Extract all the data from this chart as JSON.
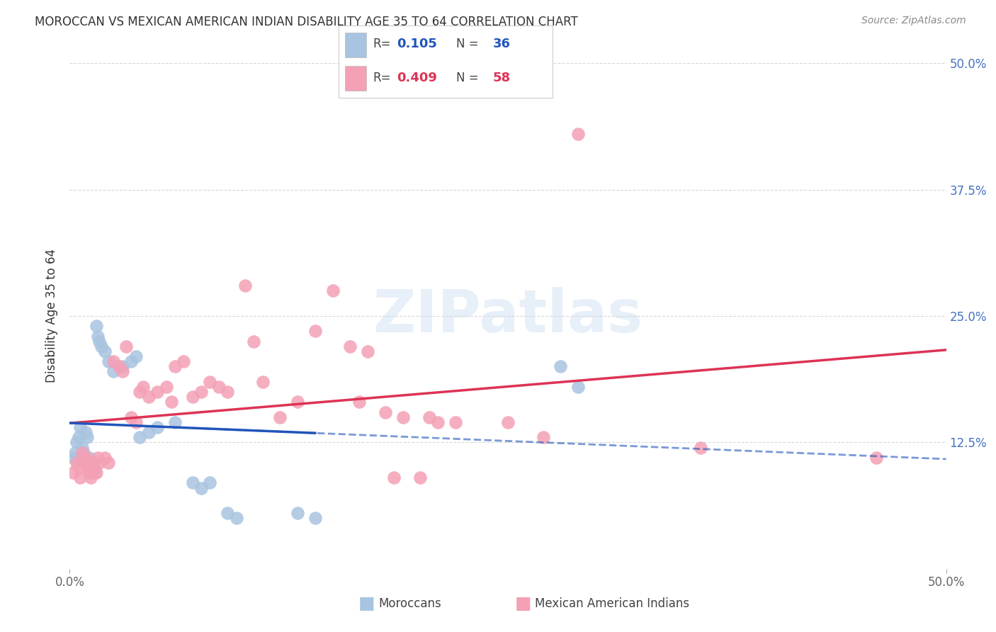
{
  "title": "MOROCCAN VS MEXICAN AMERICAN INDIAN DISABILITY AGE 35 TO 64 CORRELATION CHART",
  "source": "Source: ZipAtlas.com",
  "ylabel": "Disability Age 35 to 64",
  "legend1_r": "0.105",
  "legend1_n": "36",
  "legend2_r": "0.409",
  "legend2_n": "58",
  "watermark": "ZIPatlas",
  "blue_scatter_color": "#a8c4e0",
  "pink_scatter_color": "#f4a0b5",
  "blue_line_color": "#2255bb",
  "pink_line_color": "#dd3355",
  "blue_scatter": [
    [
      0.2,
      11.0
    ],
    [
      0.3,
      11.5
    ],
    [
      0.4,
      12.5
    ],
    [
      0.5,
      13.0
    ],
    [
      0.6,
      14.0
    ],
    [
      0.7,
      12.0
    ],
    [
      0.8,
      11.5
    ],
    [
      0.9,
      13.5
    ],
    [
      1.0,
      13.0
    ],
    [
      1.1,
      11.0
    ],
    [
      1.2,
      10.0
    ],
    [
      1.3,
      10.5
    ],
    [
      1.4,
      9.5
    ],
    [
      1.5,
      24.0
    ],
    [
      1.6,
      23.0
    ],
    [
      1.7,
      22.5
    ],
    [
      1.8,
      22.0
    ],
    [
      2.0,
      21.5
    ],
    [
      2.2,
      20.5
    ],
    [
      2.5,
      19.5
    ],
    [
      3.0,
      20.0
    ],
    [
      3.5,
      20.5
    ],
    [
      3.8,
      21.0
    ],
    [
      4.0,
      13.0
    ],
    [
      4.5,
      13.5
    ],
    [
      5.0,
      14.0
    ],
    [
      6.0,
      14.5
    ],
    [
      7.0,
      8.5
    ],
    [
      7.5,
      8.0
    ],
    [
      8.0,
      8.5
    ],
    [
      9.0,
      5.5
    ],
    [
      9.5,
      5.0
    ],
    [
      13.0,
      5.5
    ],
    [
      14.0,
      5.0
    ],
    [
      28.0,
      20.0
    ],
    [
      29.0,
      18.0
    ]
  ],
  "pink_scatter": [
    [
      0.2,
      9.5
    ],
    [
      0.4,
      10.5
    ],
    [
      0.5,
      10.0
    ],
    [
      0.6,
      9.0
    ],
    [
      0.7,
      11.5
    ],
    [
      0.8,
      10.5
    ],
    [
      0.9,
      11.0
    ],
    [
      1.0,
      10.0
    ],
    [
      1.1,
      9.5
    ],
    [
      1.2,
      9.0
    ],
    [
      1.3,
      10.5
    ],
    [
      1.4,
      10.0
    ],
    [
      1.5,
      9.5
    ],
    [
      1.6,
      11.0
    ],
    [
      1.7,
      10.5
    ],
    [
      2.0,
      11.0
    ],
    [
      2.2,
      10.5
    ],
    [
      2.5,
      20.5
    ],
    [
      2.8,
      20.0
    ],
    [
      3.0,
      19.5
    ],
    [
      3.2,
      22.0
    ],
    [
      3.5,
      15.0
    ],
    [
      3.8,
      14.5
    ],
    [
      4.0,
      17.5
    ],
    [
      4.2,
      18.0
    ],
    [
      4.5,
      17.0
    ],
    [
      5.0,
      17.5
    ],
    [
      5.5,
      18.0
    ],
    [
      5.8,
      16.5
    ],
    [
      6.0,
      20.0
    ],
    [
      6.5,
      20.5
    ],
    [
      7.0,
      17.0
    ],
    [
      7.5,
      17.5
    ],
    [
      8.0,
      18.5
    ],
    [
      8.5,
      18.0
    ],
    [
      9.0,
      17.5
    ],
    [
      10.0,
      28.0
    ],
    [
      10.5,
      22.5
    ],
    [
      11.0,
      18.5
    ],
    [
      12.0,
      15.0
    ],
    [
      13.0,
      16.5
    ],
    [
      14.0,
      23.5
    ],
    [
      15.0,
      27.5
    ],
    [
      16.0,
      22.0
    ],
    [
      16.5,
      16.5
    ],
    [
      17.0,
      21.5
    ],
    [
      18.0,
      15.5
    ],
    [
      18.5,
      9.0
    ],
    [
      19.0,
      15.0
    ],
    [
      20.0,
      9.0
    ],
    [
      20.5,
      15.0
    ],
    [
      21.0,
      14.5
    ],
    [
      22.0,
      14.5
    ],
    [
      25.0,
      14.5
    ],
    [
      27.0,
      13.0
    ],
    [
      29.0,
      43.0
    ],
    [
      36.0,
      12.0
    ],
    [
      46.0,
      11.0
    ]
  ],
  "xmin": 0.0,
  "xmax": 50.0,
  "ymin": 0.0,
  "ymax": 50.0,
  "yticks": [
    0.0,
    12.5,
    25.0,
    37.5,
    50.0
  ],
  "xticks": [
    0.0,
    50.0
  ],
  "background_color": "#ffffff",
  "grid_color": "#d8d8d8",
  "bottom_legend_labels": [
    "Moroccans",
    "Mexican American Indians"
  ]
}
